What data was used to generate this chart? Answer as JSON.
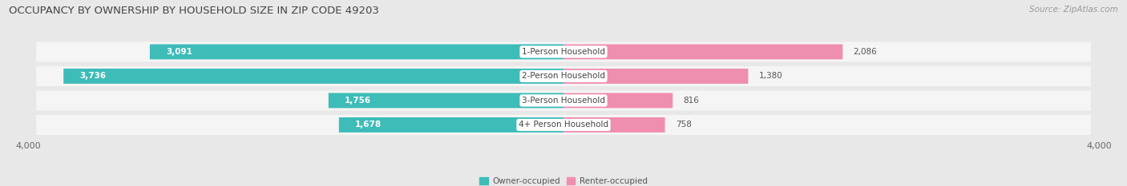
{
  "title": "OCCUPANCY BY OWNERSHIP BY HOUSEHOLD SIZE IN ZIP CODE 49203",
  "source": "Source: ZipAtlas.com",
  "categories": [
    "1-Person Household",
    "2-Person Household",
    "3-Person Household",
    "4+ Person Household"
  ],
  "owner_values": [
    3091,
    3736,
    1756,
    1678
  ],
  "renter_values": [
    2086,
    1380,
    816,
    758
  ],
  "owner_color": "#3DBCB8",
  "renter_color": "#F08EB0",
  "background_color": "#e8e8e8",
  "row_background_color": "#f5f5f5",
  "axis_limit": 4000,
  "title_fontsize": 9.5,
  "label_fontsize": 7.5,
  "cat_fontsize": 7.5,
  "tick_fontsize": 8,
  "source_fontsize": 7.5,
  "value_color": "#555555"
}
